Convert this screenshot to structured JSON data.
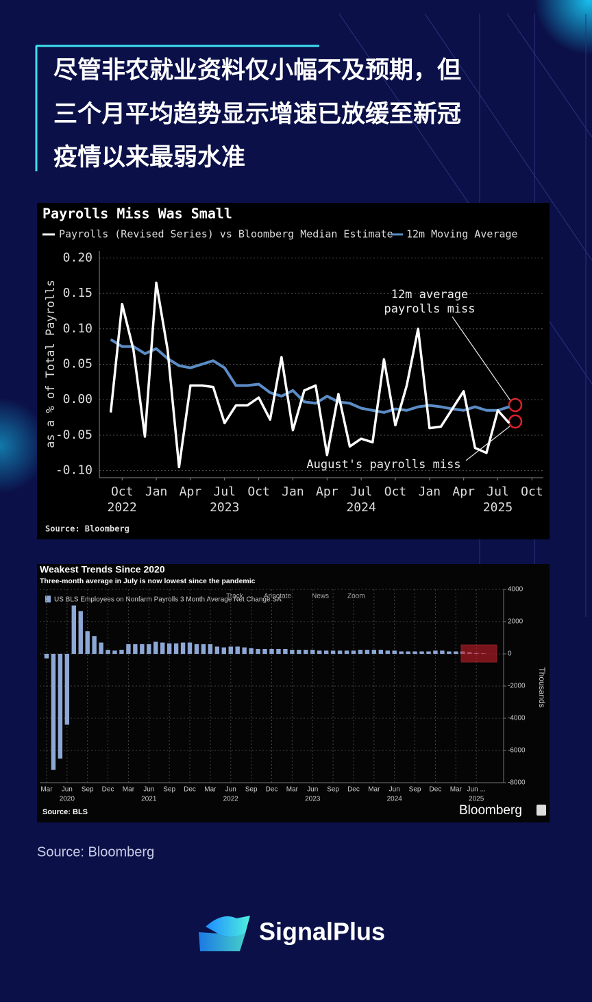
{
  "header": {
    "title_lines": [
      "尽管非农就业资料仅小幅不及预期，但",
      "三个月平均趋势显示增速已放缓至新冠",
      "疫情以来最弱水准"
    ]
  },
  "chart_data": [
    {
      "type": "line",
      "title": "Payrolls Miss Was Small",
      "y_label": "as a % of Total Payrolls",
      "x": [
        "2022-09",
        "2022-10",
        "2022-11",
        "2022-12",
        "2023-01",
        "2023-02",
        "2023-03",
        "2023-04",
        "2023-05",
        "2023-06",
        "2023-07",
        "2023-08",
        "2023-09",
        "2023-10",
        "2023-11",
        "2023-12",
        "2024-01",
        "2024-02",
        "2024-03",
        "2024-04",
        "2024-05",
        "2024-06",
        "2024-07",
        "2024-08",
        "2024-09",
        "2024-10",
        "2024-11",
        "2024-12",
        "2025-01",
        "2025-02",
        "2025-03",
        "2025-04",
        "2025-05",
        "2025-06",
        "2025-07",
        "2025-08"
      ],
      "series": [
        {
          "name": "Payrolls (Revised Series) vs Bloomberg Median Estimate",
          "color": "#ffffff",
          "values": [
            -0.018,
            0.135,
            0.07,
            -0.052,
            0.165,
            0.07,
            -0.095,
            0.02,
            0.02,
            0.018,
            -0.033,
            -0.008,
            -0.008,
            0.003,
            -0.028,
            0.06,
            -0.043,
            0.013,
            0.02,
            -0.078,
            0.008,
            -0.066,
            -0.055,
            -0.06,
            0.057,
            -0.036,
            0.02,
            0.1,
            -0.04,
            -0.038,
            -0.013,
            0.012,
            -0.068,
            -0.075,
            -0.015,
            -0.033
          ]
        },
        {
          "name": "12m Moving Average",
          "color": "#5b8cc6",
          "values": [
            0.085,
            0.075,
            0.075,
            0.065,
            0.072,
            0.058,
            0.048,
            0.045,
            0.05,
            0.055,
            0.045,
            0.02,
            0.02,
            0.022,
            0.01,
            0.005,
            0.013,
            -0.003,
            -0.005,
            0.005,
            -0.003,
            -0.005,
            -0.012,
            -0.015,
            -0.018,
            -0.013,
            -0.015,
            -0.01,
            -0.008,
            -0.01,
            -0.013,
            -0.015,
            -0.01,
            -0.015,
            -0.015,
            -0.01
          ]
        }
      ],
      "xlim": [
        "2022-08",
        "2025-11"
      ],
      "xticks": [
        {
          "value": "2022-10",
          "label": "Oct"
        },
        {
          "value": "2023-01",
          "label": "Jan"
        },
        {
          "value": "2023-04",
          "label": "Apr"
        },
        {
          "value": "2023-07",
          "label": "Jul"
        },
        {
          "value": "2023-10",
          "label": "Oct"
        },
        {
          "value": "2024-01",
          "label": "Jan"
        },
        {
          "value": "2024-04",
          "label": "Apr"
        },
        {
          "value": "2024-07",
          "label": "Jul"
        },
        {
          "value": "2024-10",
          "label": "Oct"
        },
        {
          "value": "2025-01",
          "label": "Jan"
        },
        {
          "value": "2025-04",
          "label": "Apr"
        },
        {
          "value": "2025-07",
          "label": "Jul"
        },
        {
          "value": "2025-10",
          "label": "Oct"
        }
      ],
      "xtick_years": [
        {
          "value": "2022-10",
          "label": "2022"
        },
        {
          "value": "2023-07",
          "label": "2023"
        },
        {
          "value": "2024-07",
          "label": "2024"
        },
        {
          "value": "2025-07",
          "label": "2025"
        }
      ],
      "ylim": [
        -0.11,
        0.21
      ],
      "yticks": [
        {
          "value": 0.2,
          "label": "0.20"
        },
        {
          "value": 0.15,
          "label": "0.15"
        },
        {
          "value": 0.1,
          "label": "0.10"
        },
        {
          "value": 0.05,
          "label": "0.05"
        },
        {
          "value": 0,
          "label": "0.00"
        },
        {
          "value": -0.05,
          "label": "-0.05"
        },
        {
          "value": -0.1,
          "label": "-0.10"
        }
      ],
      "grid": true,
      "annotations": [
        "12m average",
        "payrolls miss",
        "August's payrolls miss"
      ],
      "source": "Source: Bloomberg"
    },
    {
      "type": "bar",
      "title": "Weakest Trends Since 2020",
      "subtitle": "Three-month average in July is now lowest since the pandemic",
      "toolbar": [
        "Track",
        "Annotate",
        "News",
        "Zoom"
      ],
      "y_label": "Thousands",
      "x": [
        "2020-03",
        "2020-04",
        "2020-05",
        "2020-06",
        "2020-07",
        "2020-08",
        "2020-09",
        "2020-10",
        "2020-11",
        "2020-12",
        "2021-01",
        "2021-02",
        "2021-03",
        "2021-04",
        "2021-05",
        "2021-06",
        "2021-07",
        "2021-08",
        "2021-09",
        "2021-10",
        "2021-11",
        "2021-12",
        "2022-01",
        "2022-02",
        "2022-03",
        "2022-04",
        "2022-05",
        "2022-06",
        "2022-07",
        "2022-08",
        "2022-09",
        "2022-10",
        "2022-11",
        "2022-12",
        "2023-01",
        "2023-02",
        "2023-03",
        "2023-04",
        "2023-05",
        "2023-06",
        "2023-07",
        "2023-08",
        "2023-09",
        "2023-10",
        "2023-11",
        "2023-12",
        "2024-01",
        "2024-02",
        "2024-03",
        "2024-04",
        "2024-05",
        "2024-06",
        "2024-07",
        "2024-08",
        "2024-09",
        "2024-10",
        "2024-11",
        "2024-12",
        "2025-01",
        "2025-02",
        "2025-03",
        "2025-04",
        "2025-05",
        "2025-06",
        "2025-07"
      ],
      "series": [
        {
          "name": "US BLS Employees on Nonfarm Payrolls 3 Month Average Net Change SA",
          "color": "#8ea8d6",
          "values": [
            -280,
            -7200,
            -6500,
            -4400,
            3000,
            2650,
            1400,
            1100,
            700,
            250,
            200,
            250,
            600,
            600,
            600,
            600,
            750,
            700,
            650,
            650,
            700,
            700,
            600,
            600,
            600,
            450,
            400,
            450,
            450,
            400,
            350,
            300,
            300,
            300,
            300,
            300,
            250,
            250,
            250,
            250,
            200,
            200,
            200,
            200,
            200,
            200,
            250,
            250,
            250,
            250,
            200,
            200,
            150,
            150,
            150,
            150,
            150,
            200,
            200,
            150,
            150,
            150,
            100,
            50,
            35
          ]
        }
      ],
      "xlim": [
        "2020-02",
        "2025-10"
      ],
      "xticks": [
        {
          "value": "2020-03",
          "label": "Mar"
        },
        {
          "value": "2020-06",
          "label": "Jun"
        },
        {
          "value": "2020-09",
          "label": "Sep"
        },
        {
          "value": "2020-12",
          "label": "Dec"
        },
        {
          "value": "2021-03",
          "label": "Mar"
        },
        {
          "value": "2021-06",
          "label": "Jun"
        },
        {
          "value": "2021-09",
          "label": "Sep"
        },
        {
          "value": "2021-12",
          "label": "Dec"
        },
        {
          "value": "2022-03",
          "label": "Mar"
        },
        {
          "value": "2022-06",
          "label": "Jun"
        },
        {
          "value": "2022-09",
          "label": "Sep"
        },
        {
          "value": "2022-12",
          "label": "Dec"
        },
        {
          "value": "2023-03",
          "label": "Mar"
        },
        {
          "value": "2023-06",
          "label": "Jun"
        },
        {
          "value": "2023-09",
          "label": "Sep"
        },
        {
          "value": "2023-12",
          "label": "Dec"
        },
        {
          "value": "2024-03",
          "label": "Mar"
        },
        {
          "value": "2024-06",
          "label": "Jun"
        },
        {
          "value": "2024-09",
          "label": "Sep"
        },
        {
          "value": "2024-12",
          "label": "Dec"
        },
        {
          "value": "2025-03",
          "label": "Mar"
        },
        {
          "value": "2025-06",
          "label": "Jun ..."
        }
      ],
      "xtick_years": [
        {
          "value": "2020-06",
          "label": "2020"
        },
        {
          "value": "2021-06",
          "label": "2021"
        },
        {
          "value": "2022-06",
          "label": "2022"
        },
        {
          "value": "2023-06",
          "label": "2023"
        },
        {
          "value": "2024-06",
          "label": "2024"
        },
        {
          "value": "2025-06",
          "label": "2025"
        }
      ],
      "ylim": [
        -8000,
        4000
      ],
      "yticks": [
        4000,
        2000,
        0,
        -2000,
        -4000,
        -6000,
        -8000
      ],
      "grid": true,
      "source": "Source: BLS",
      "brand": "Bloomberg"
    }
  ],
  "footer": {
    "source": "Source: Bloomberg",
    "brand": "SignalPlus"
  }
}
